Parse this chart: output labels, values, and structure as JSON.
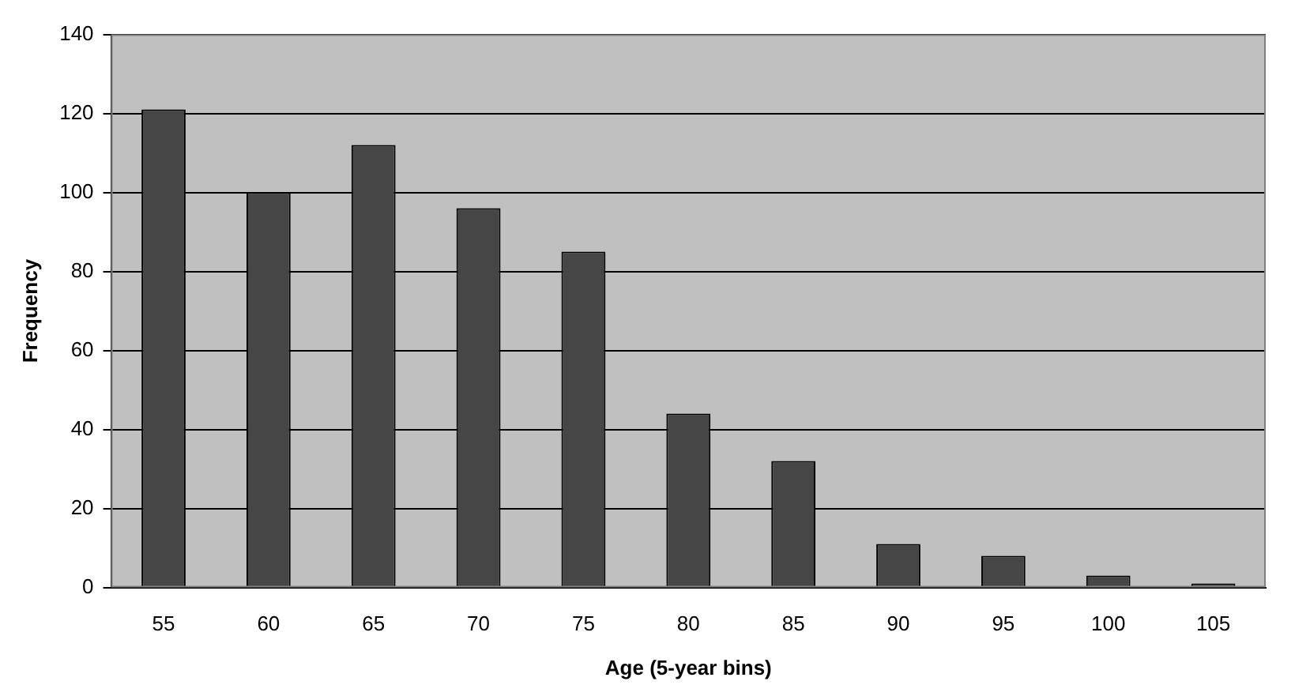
{
  "chart_data": {
    "type": "bar",
    "xlabel": "Age (5-year bins)",
    "ylabel": "Frequency",
    "categories": [
      "55",
      "60",
      "65",
      "70",
      "75",
      "80",
      "85",
      "90",
      "95",
      "100",
      "105"
    ],
    "values": [
      121,
      100,
      112,
      96,
      85,
      44,
      32,
      11,
      8,
      3,
      1
    ],
    "color": "#464646",
    "ylim": [
      0,
      140
    ],
    "yticks": [
      0,
      20,
      40,
      60,
      80,
      100,
      120,
      140
    ],
    "grid": "y",
    "legend": false
  }
}
